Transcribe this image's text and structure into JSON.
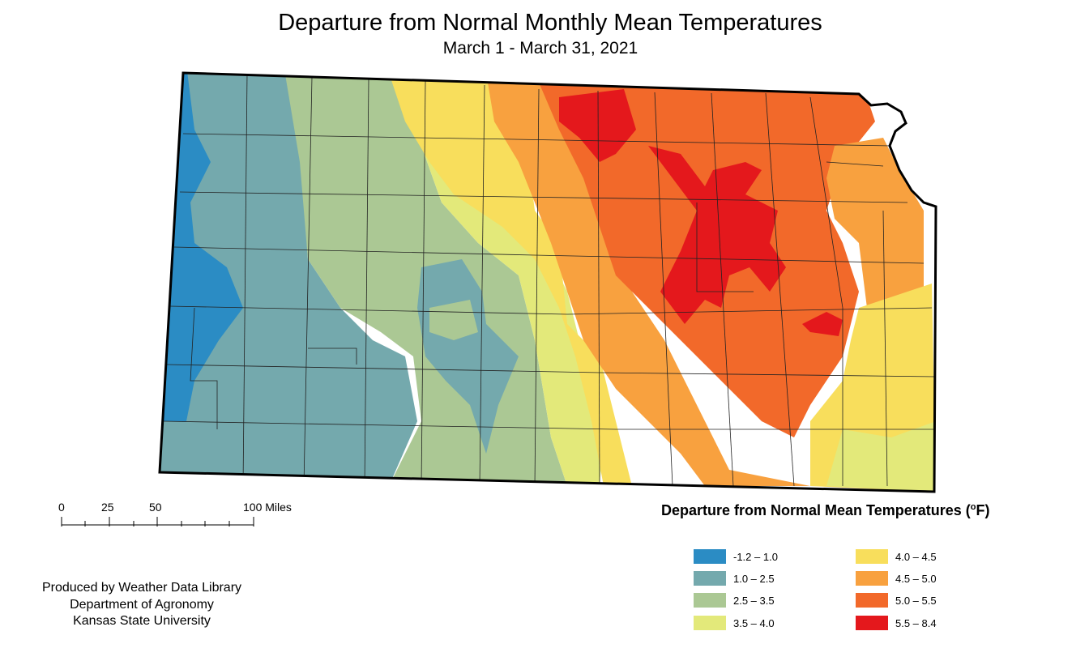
{
  "title": "Departure from Normal Monthly Mean Temperatures",
  "subtitle": "March 1 - March 31, 2021",
  "scale_bar": {
    "labels": [
      "0",
      "25",
      "50",
      "100 Miles"
    ]
  },
  "legend": {
    "title": "Departure from Normal Mean Temperatures (",
    "unit_degree": "o",
    "unit_letter": "F)",
    "classes": [
      {
        "label": "-1.2 – 1.0",
        "color": "#2b8cc4"
      },
      {
        "label": "1.0 – 2.5",
        "color": "#74a9ad"
      },
      {
        "label": "2.5 – 3.5",
        "color": "#abc894"
      },
      {
        "label": "3.5 – 4.0",
        "color": "#e3e97a"
      },
      {
        "label": "4.0 – 4.5",
        "color": "#f8de5c"
      },
      {
        "label": "4.5 – 5.0",
        "color": "#f8a13f"
      },
      {
        "label": "5.0 – 5.5",
        "color": "#f2692a"
      },
      {
        "label": "5.5 – 8.4",
        "color": "#e4181c"
      }
    ]
  },
  "credits": {
    "line1": "Produced by Weather Data Library",
    "line2": "Department of Agronomy",
    "line3": "Kansas State University"
  }
}
